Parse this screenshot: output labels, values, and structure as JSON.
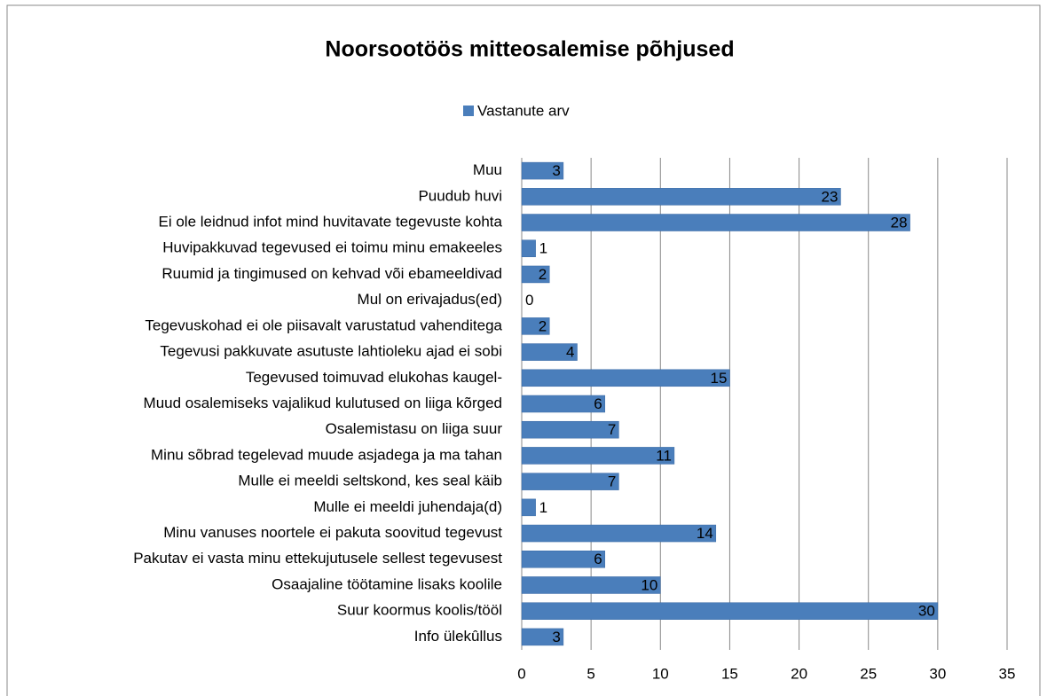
{
  "chart_data": {
    "type": "bar",
    "orientation": "horizontal",
    "title": "Noorsootöös mitteosalemise põhjused",
    "categories": [
      "Muu",
      "Puudub huvi",
      "Ei ole leidnud infot mind huvitavate tegevuste kohta",
      "Huvipakkuvad tegevused ei toimu minu emakeeles",
      "Ruumid ja tingimused on kehvad või ebameeldivad",
      "Mul on erivajadus(ed)",
      "Tegevuskohad ei ole piisavalt varustatud vahenditega",
      "Tegevusi pakkuvate asutuste lahtioleku ajad ei sobi",
      "Tegevused toimuvad elukohas kaugel-",
      "Muud osalemiseks vajalikud kulutused on liiga kõrged",
      "Osalemistasu on liiga suur",
      "Minu sõbrad tegelevad muude asjadega ja ma tahan",
      "Mulle ei meeldi seltskond, kes seal käib",
      "Mulle ei meeldi juhendaja(d)",
      "Minu vanuses noortele ei pakuta soovitud tegevust",
      "Pakutav ei vasta minu ettekujutusele sellest tegevusest",
      "Osaajaline töötamine lisaks koolile",
      "Suur koormus koolis/tööl",
      "Info ülekûllus"
    ],
    "series": [
      {
        "name": "Vastanute arv",
        "color": "#4a7ebb",
        "values": [
          3,
          23,
          28,
          1,
          2,
          0,
          2,
          4,
          15,
          6,
          7,
          11,
          7,
          1,
          14,
          6,
          10,
          30,
          3
        ]
      }
    ],
    "xlim": [
      0,
      35
    ],
    "xticks": [
      0,
      5,
      10,
      15,
      20,
      25,
      30,
      35
    ],
    "grid": true,
    "legend": "top"
  }
}
